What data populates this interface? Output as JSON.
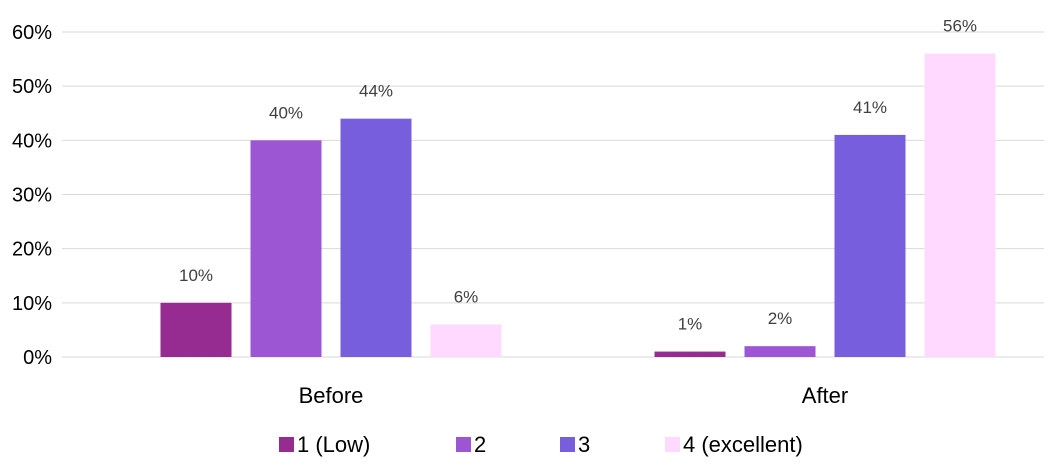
{
  "chart_data": {
    "type": "bar",
    "categories": [
      "Before",
      "After"
    ],
    "series": [
      {
        "name": "1 (Low)",
        "values": [
          10,
          1
        ],
        "labels": [
          "10%",
          "1%"
        ],
        "color": "#962B91"
      },
      {
        "name": "2",
        "values": [
          40,
          2
        ],
        "labels": [
          "40%",
          "2%"
        ],
        "color": "#9C55D3"
      },
      {
        "name": "3",
        "values": [
          44,
          41
        ],
        "labels": [
          "44%",
          "41%"
        ],
        "color": "#765EDC"
      },
      {
        "name": "4 (excellent)",
        "values": [
          6,
          56
        ],
        "labels": [
          "6%",
          "56%"
        ],
        "color": "#FFD9FF"
      }
    ],
    "ylim": [
      0,
      60
    ],
    "yticks": [
      0,
      10,
      20,
      30,
      40,
      50,
      60
    ],
    "ytick_labels": [
      "0%",
      "10%",
      "20%",
      "30%",
      "40%",
      "50%",
      "60%"
    ],
    "grid": true,
    "legend_position": "bottom",
    "gridline_color": "#D9D9D9"
  }
}
